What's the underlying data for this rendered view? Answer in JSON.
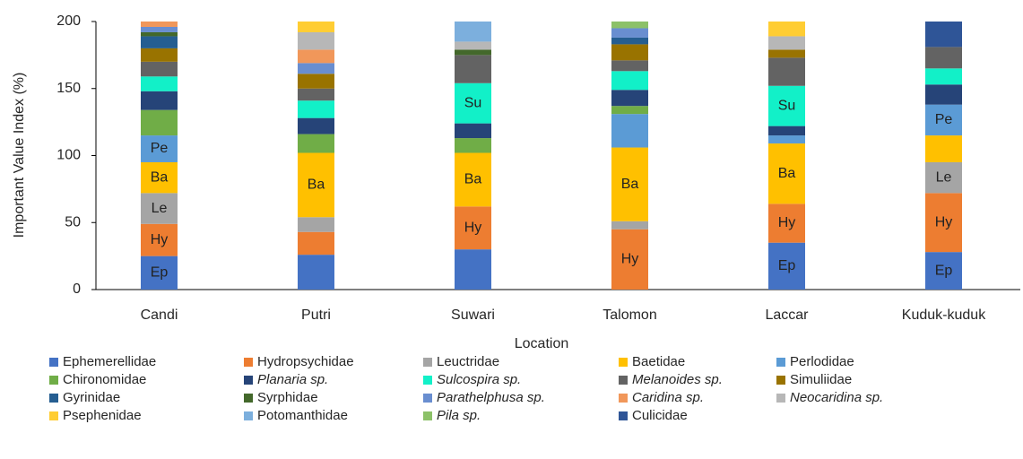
{
  "chart_data": {
    "type": "stacked_bar",
    "y_axis_label": "Important Value Index (%)",
    "x_axis_label": "Location",
    "categories": [
      "Candi",
      "Putri",
      "Suwari",
      "Talomon",
      "Laccar",
      "Kuduk-kuduk"
    ],
    "ylim": [
      0,
      200
    ],
    "yticks": [
      0,
      50,
      100,
      150,
      200
    ],
    "grid": false,
    "legend": "bottom",
    "series": [
      {
        "name": "Ephemerellidae",
        "color": "#4472c4",
        "values": [
          25,
          26,
          30,
          0,
          35,
          28
        ],
        "segment_labels": [
          "Ep",
          null,
          null,
          null,
          "Ep",
          "Ep"
        ]
      },
      {
        "name": "Hydropsychidae",
        "color": "#ed7d31",
        "values": [
          24,
          17,
          32,
          45,
          29,
          44
        ],
        "segment_labels": [
          "Hy",
          null,
          "Hy",
          "Hy",
          "Hy",
          "Hy"
        ]
      },
      {
        "name": "Leuctridae",
        "color": "#a5a5a5",
        "values": [
          23,
          11,
          0,
          6,
          0,
          23
        ],
        "segment_labels": [
          "Le",
          null,
          null,
          null,
          null,
          "Le"
        ]
      },
      {
        "name": "Baetidae",
        "color": "#ffc000",
        "values": [
          23,
          48,
          40,
          55,
          45,
          20
        ],
        "segment_labels": [
          "Ba",
          "Ba",
          "Ba",
          "Ba",
          "Ba",
          null
        ]
      },
      {
        "name": "Perlodidae",
        "color": "#5b9bd5",
        "values": [
          20,
          0,
          0,
          25,
          6,
          23
        ],
        "segment_labels": [
          "Pe",
          null,
          null,
          null,
          null,
          "Pe"
        ]
      },
      {
        "name": "Chironomidae",
        "color": "#70ad47",
        "values": [
          19,
          14,
          11,
          6,
          0,
          0
        ]
      },
      {
        "name": "Planaria sp.",
        "italic": true,
        "color": "#264478",
        "values": [
          14,
          12,
          11,
          12,
          7,
          15
        ]
      },
      {
        "name": "Sulcospira sp.",
        "italic": true,
        "color": "#12f0c8",
        "values": [
          11,
          13,
          30,
          14,
          30,
          12
        ],
        "segment_labels": [
          null,
          null,
          "Su",
          null,
          "Su",
          null
        ]
      },
      {
        "name": "Melanoides sp.",
        "italic": true,
        "color": "#636363",
        "values": [
          11,
          9,
          21,
          8,
          21,
          16
        ]
      },
      {
        "name": "Simuliidae",
        "color": "#997300",
        "values": [
          10,
          11,
          0,
          12,
          6,
          0
        ]
      },
      {
        "name": "Gyrinidae",
        "color": "#255e91",
        "values": [
          9,
          0,
          0,
          5,
          0,
          0
        ]
      },
      {
        "name": "Syrphidae",
        "color": "#43682b",
        "values": [
          3,
          0,
          4,
          0,
          0,
          0
        ]
      },
      {
        "name": "Parathelphusa sp.",
        "italic": true,
        "color": "#698ed0",
        "values": [
          4,
          8,
          0,
          7,
          0,
          0
        ]
      },
      {
        "name": "Caridina sp.",
        "italic": true,
        "color": "#f1975a",
        "values": [
          4,
          10,
          0,
          0,
          0,
          0
        ]
      },
      {
        "name": "Neocaridina sp.",
        "italic": true,
        "color": "#b7b7b7",
        "values": [
          0,
          13,
          6,
          0,
          10,
          0
        ]
      },
      {
        "name": "Psephenidae",
        "color": "#ffcd33",
        "values": [
          0,
          8,
          0,
          0,
          11,
          0
        ]
      },
      {
        "name": "Potomanthidae",
        "color": "#7cafdd",
        "values": [
          0,
          0,
          15,
          0,
          0,
          0
        ]
      },
      {
        "name": "Pila sp.",
        "italic": true,
        "color": "#8cc168",
        "values": [
          0,
          0,
          0,
          5,
          0,
          0
        ]
      },
      {
        "name": "Culicidae",
        "color": "#2f5597",
        "values": [
          0,
          0,
          0,
          0,
          0,
          19
        ]
      }
    ]
  }
}
